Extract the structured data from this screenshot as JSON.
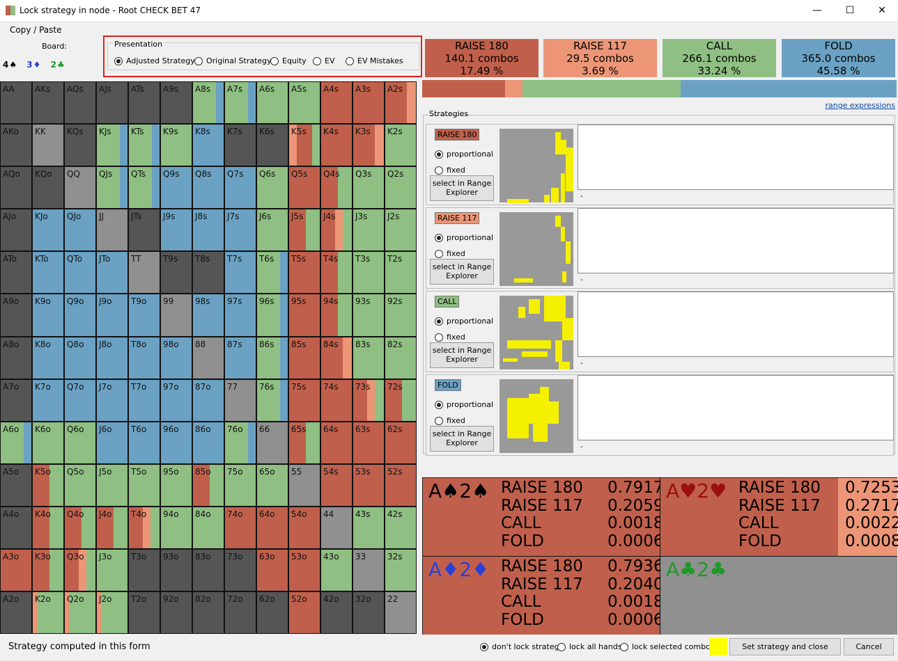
{
  "window": {
    "title": "Lock strategy in node  - Root CHECK BET 47",
    "minimize": "—",
    "maximize": "☐",
    "close": "✕"
  },
  "toolbar": {
    "copy_paste": "Copy / Paste",
    "board_label": "Board:"
  },
  "board": [
    {
      "text": "4♠",
      "color": "#000000"
    },
    {
      "text": "3♦",
      "color": "#2a3fd6"
    },
    {
      "text": "2♣",
      "color": "#1e9a28"
    }
  ],
  "presentation": {
    "title": "Presentation",
    "options": [
      {
        "label": "Adjusted Strategy",
        "selected": true
      },
      {
        "label": "Original Strategy",
        "selected": false
      },
      {
        "label": "Equity",
        "selected": false
      },
      {
        "label": "EV",
        "selected": false
      },
      {
        "label": "EV Mistakes",
        "selected": false
      }
    ]
  },
  "colors": {
    "raise180": "#c0604c",
    "raise117": "#ec9677",
    "call": "#8fbf82",
    "fold": "#6ba2c4",
    "gray": "#909090",
    "dark": "#555555"
  },
  "actions": [
    {
      "name": "RAISE 180",
      "combos": "140.1 combos",
      "pct": "17.49 %",
      "share": 17.49,
      "color": "#c0604c"
    },
    {
      "name": "RAISE 117",
      "combos": "29.5 combos",
      "pct": "3.69 %",
      "share": 3.69,
      "color": "#ec9677"
    },
    {
      "name": "CALL",
      "combos": "266.1 combos",
      "pct": "33.24 %",
      "share": 33.24,
      "color": "#8fbf82"
    },
    {
      "name": "FOLD",
      "combos": "365.0 combos",
      "pct": "45.58 %",
      "share": 45.58,
      "color": "#6ba2c4"
    }
  ],
  "matrix_rows": [
    "AA AKs AQs AJs ATs A9s A8s A7s A6s A5s A4s A3s A2s",
    "AKo KK KQs KJs KTs K9s K8s K7s K6s K5s K4s K3s K2s",
    "AQo KQo QQ QJs QTs Q9s Q8s Q7s Q6s Q5s Q4s Q3s Q2s",
    "AJo KJo QJo JJ JTs J9s J8s J7s J6s J5s J4s J3s J2s",
    "ATo KTo QTo JTo TT T9s T8s T7s T6s T5s T4s T3s T2s",
    "A9o K9o Q9o J9o T9o 99 98s 97s 96s 95s 94s 93s 92s",
    "A8o K8o Q8o J8o T8o 98o 88 87s 86s 85s 84s 83s 82s",
    "A7o K7o Q7o J7o T7o 97o 87o 77 76s 75s 74s 73s 72s",
    "A6o K6o Q6o J6o T6o 96o 86o 76o 66 65s 64s 63s 62s",
    "A5o K5o Q5o J5o T5o 95o 85o 75o 65o 55 54s 53s 52s",
    "A4o K4o Q4o J4o T4o 94o 84o 74o 64o 54o 44 43s 42s",
    "A3o K3o Q3o J3o T3o 93o 83o 73o 63o 53o 43o 33 32s",
    "A2o K2o Q2o J2o T2o 92o 82o 72o 62o 52o 42o 32o 22"
  ],
  "matrix_strategy": [
    [
      "D",
      "D",
      "D",
      "D",
      "D",
      "D",
      "cF",
      "cF",
      "c",
      "c",
      "R",
      "R",
      "Rr"
    ],
    [
      "D",
      "G",
      "D",
      "cF",
      "cF",
      "c",
      "F",
      "D",
      "D",
      "rRc",
      "R",
      "Rr",
      "c"
    ],
    [
      "D",
      "D",
      "G",
      "cF",
      "cF",
      "F",
      "F",
      "F",
      "c",
      "R",
      "Rc",
      "c",
      "c"
    ],
    [
      "D",
      "F",
      "F",
      "G",
      "D",
      "F",
      "F",
      "F",
      "c",
      "Rc",
      "Rrc",
      "c",
      "c"
    ],
    [
      "D",
      "F",
      "F",
      "F",
      "G",
      "D",
      "D",
      "F",
      "cF",
      "R",
      "Rc",
      "c",
      "c"
    ],
    [
      "D",
      "F",
      "F",
      "F",
      "F",
      "G",
      "F",
      "F",
      "cF",
      "R",
      "Rc",
      "c",
      "c"
    ],
    [
      "D",
      "F",
      "F",
      "F",
      "F",
      "F",
      "G",
      "F",
      "cF",
      "R",
      "Rr",
      "c",
      "c"
    ],
    [
      "D",
      "F",
      "F",
      "F",
      "F",
      "F",
      "F",
      "G",
      "cF",
      "R",
      "R",
      "Rrc",
      "Rc"
    ],
    [
      "cF",
      "c",
      "c",
      "F",
      "F",
      "F",
      "F",
      "cF",
      "G",
      "Rc",
      "R",
      "R",
      "R"
    ],
    [
      "D",
      "Rc",
      "c",
      "c",
      "c",
      "c",
      "Rc",
      "c",
      "c",
      "G",
      "R",
      "R",
      "R"
    ],
    [
      "D",
      "Rc",
      "Rc",
      "Rc",
      "Rrc",
      "c",
      "c",
      "R",
      "R",
      "R",
      "G",
      "c",
      "c"
    ],
    [
      "R",
      "Rc",
      "Rrc",
      "c",
      "D",
      "D",
      "D",
      "D",
      "R",
      "R",
      "c",
      "G",
      "c"
    ],
    [
      "D",
      "rc",
      "rc",
      "rc",
      "D",
      "D",
      "D",
      "D",
      "D",
      "R",
      "D",
      "D",
      "G"
    ]
  ],
  "strategies": {
    "title": "Strategies",
    "range_link": "range expressions",
    "proportional": "proportional",
    "fixed": "fixed",
    "select_button": "select in Range Explorer",
    "items": [
      {
        "tag": "RAISE 180",
        "color": "#c0604c",
        "text": "",
        "dash": "-"
      },
      {
        "tag": "RAISE 117",
        "color": "#ec9677",
        "text": "",
        "dash": "-"
      },
      {
        "tag": "CALL",
        "color": "#8fbf82",
        "text": "",
        "dash": "-"
      },
      {
        "tag": "FOLD",
        "color": "#6ba2c4",
        "text": "",
        "dash": "-"
      }
    ]
  },
  "combos": [
    {
      "name": "A♠2♠",
      "color": "#000000",
      "labels": [
        "RAISE 180",
        "RAISE 117",
        "CALL",
        "FOLD"
      ],
      "values": [
        "0.7917",
        "0.2059",
        "0.0018",
        "0.0006"
      ]
    },
    {
      "name": "A♥2♥",
      "color": "#9a0f0f",
      "labels": [
        "RAISE 180",
        "RAISE 117",
        "CALL",
        "FOLD"
      ],
      "values": [
        "0.7253",
        "0.2717",
        "0.0022",
        "0.0008"
      ]
    },
    {
      "name": "A♦2♦",
      "color": "#2a3fd6",
      "labels": [
        "RAISE 180",
        "RAISE 117",
        "CALL",
        "FOLD"
      ],
      "values": [
        "0.7936",
        "0.2040",
        "0.0018",
        "0.0006"
      ]
    },
    {
      "name": "A♣2♣",
      "color": "#1e9a28",
      "labels": [],
      "values": []
    }
  ],
  "bottom": {
    "status": "Strategy computed in this form",
    "lock_options": [
      {
        "label": "don't lock strategy",
        "selected": true
      },
      {
        "label": "lock all hands",
        "selected": false
      },
      {
        "label": "lock selected combos",
        "selected": false
      }
    ],
    "set_button": "Set strategy and close",
    "cancel_button": "Cancel"
  }
}
